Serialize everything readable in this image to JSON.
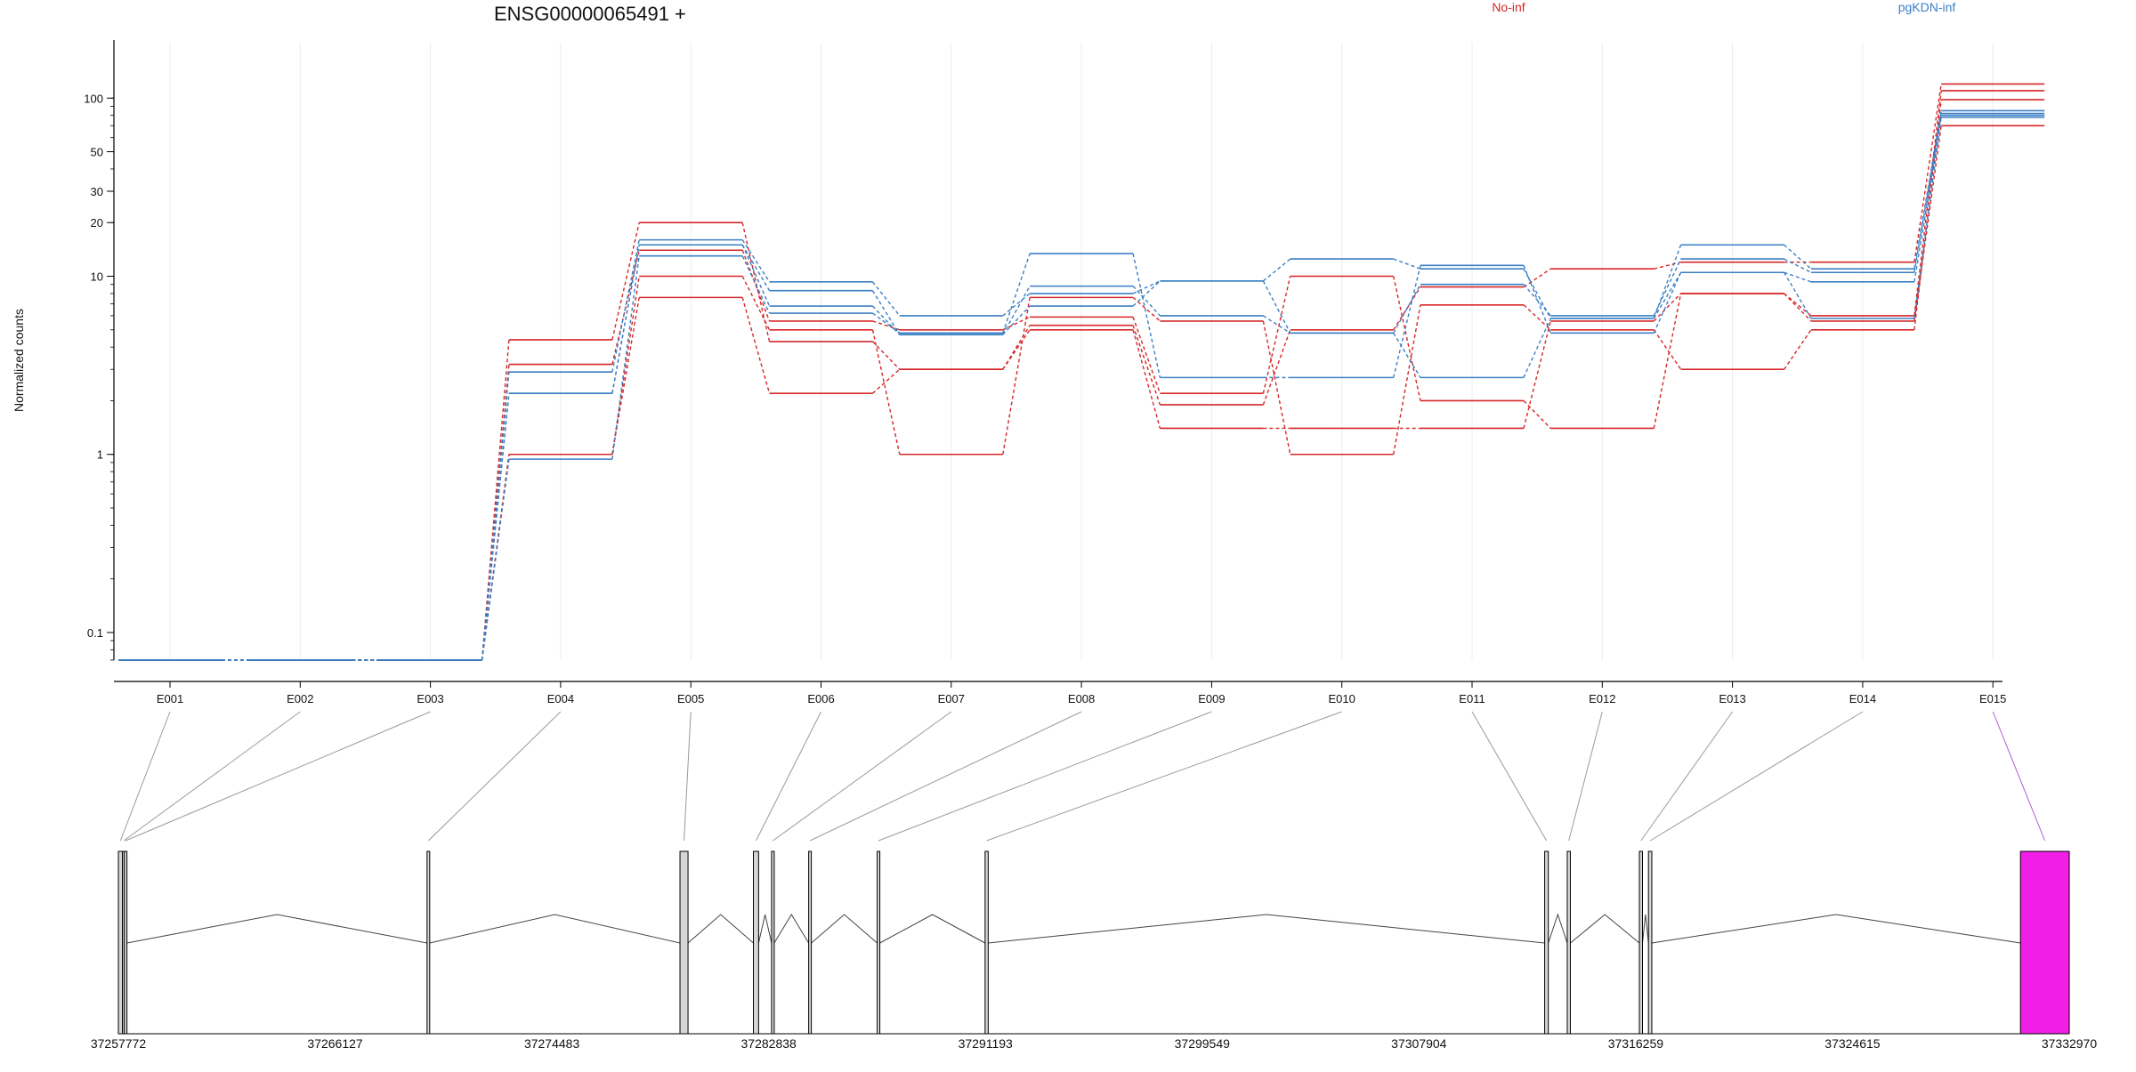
{
  "chart_data": {
    "type": "line",
    "title": "ENSG00000065491 +",
    "subtitle": "",
    "xlabel": "",
    "ylabel": "Normalized counts",
    "yscale": "log",
    "ylim": [
      0.07,
      150
    ],
    "y_ticks": [
      {
        "value": 0.1,
        "label": "0.1"
      },
      {
        "value": 1,
        "label": "1"
      },
      {
        "value": 10,
        "label": "10"
      },
      {
        "value": 20,
        "label": "20"
      },
      {
        "value": 30,
        "label": "30"
      },
      {
        "value": 50,
        "label": "50"
      },
      {
        "value": 100,
        "label": "100"
      }
    ],
    "categories": [
      "E001",
      "E002",
      "E003",
      "E004",
      "E005",
      "E006",
      "E007",
      "E008",
      "E009",
      "E010",
      "E011",
      "E012",
      "E013",
      "E014",
      "E015"
    ],
    "legend": [
      {
        "label": "No-inf",
        "color": "#d62728"
      },
      {
        "label": "pgKDN-inf",
        "color": "#3b7fc4"
      }
    ],
    "grid": "vertical-light",
    "series": [
      {
        "group": "No-inf",
        "color": "#d62728",
        "values": [
          0.07,
          0.07,
          0.07,
          4.4,
          20,
          4.3,
          3.0,
          5.3,
          1.9,
          5.0,
          8.7,
          11,
          12,
          12,
          120
        ]
      },
      {
        "group": "No-inf",
        "color": "#d62728",
        "values": [
          0.07,
          0.07,
          0.07,
          3.2,
          14,
          5.6,
          5.0,
          5.9,
          2.2,
          10,
          2.0,
          1.4,
          8.0,
          6.0,
          110
        ]
      },
      {
        "group": "No-inf",
        "color": "#d62728",
        "values": [
          0.07,
          0.07,
          0.07,
          1.0,
          10,
          5.0,
          1.0,
          7.6,
          5.6,
          1.0,
          6.9,
          5.0,
          3.0,
          5.0,
          98
        ]
      },
      {
        "group": "No-inf",
        "color": "#d62728",
        "values": [
          0.07,
          0.07,
          0.07,
          1.0,
          7.6,
          2.2,
          3.0,
          5.0,
          1.4,
          1.4,
          1.4,
          5.6,
          8.0,
          5.6,
          70
        ]
      },
      {
        "group": "pgKDN-inf",
        "color": "#3b7fc4",
        "values": [
          0.07,
          0.07,
          0.07,
          2.9,
          16,
          9.3,
          6.0,
          8.0,
          9.4,
          12.5,
          11,
          5.8,
          15,
          11,
          85
        ]
      },
      {
        "group": "pgKDN-inf",
        "color": "#3b7fc4",
        "values": [
          0.07,
          0.07,
          0.07,
          2.2,
          15,
          8.3,
          4.7,
          8.8,
          6.0,
          4.8,
          9.0,
          6.0,
          12.5,
          10.5,
          82
        ]
      },
      {
        "group": "pgKDN-inf",
        "color": "#3b7fc4",
        "values": [
          0.07,
          0.07,
          0.07,
          0.94,
          13,
          6.2,
          4.8,
          13.4,
          2.7,
          2.7,
          11.5,
          4.8,
          10.5,
          9.3,
          78
        ]
      },
      {
        "group": "pgKDN-inf",
        "color": "#3b7fc4",
        "values": [
          0.07,
          0.07,
          0.07,
          2.2,
          15,
          6.8,
          4.7,
          6.8,
          9.4,
          4.8,
          2.7,
          5.8,
          10.5,
          5.8,
          80
        ]
      }
    ],
    "gene_model": {
      "coord_ticks": [
        "37257772",
        "37266127",
        "37274483",
        "37282838",
        "37291193",
        "37299549",
        "37307904",
        "37316259",
        "37324615",
        "37332970"
      ],
      "coord_range": [
        37257772,
        37332970
      ],
      "exons": [
        {
          "id": "E001",
          "start": 37257772,
          "end": 37257930,
          "highlight": false
        },
        {
          "id": "E002",
          "start": 37257930,
          "end": 37258000,
          "highlight": false
        },
        {
          "id": "E003",
          "start": 37258000,
          "end": 37258070,
          "highlight": false
        },
        {
          "id": "E004",
          "start": 37269670,
          "end": 37269730,
          "highlight": false
        },
        {
          "id": "E005",
          "start": 37279420,
          "end": 37279730,
          "highlight": false
        },
        {
          "id": "E006",
          "start": 37282250,
          "end": 37282450,
          "highlight": false
        },
        {
          "id": "E007",
          "start": 37282950,
          "end": 37283030,
          "highlight": false
        },
        {
          "id": "E008",
          "start": 37284380,
          "end": 37284480,
          "highlight": false
        },
        {
          "id": "E009",
          "start": 37287020,
          "end": 37287090,
          "highlight": false
        },
        {
          "id": "E010",
          "start": 37291180,
          "end": 37291300,
          "highlight": false
        },
        {
          "id": "E011",
          "start": 37312750,
          "end": 37312890,
          "highlight": false
        },
        {
          "id": "E012",
          "start": 37313620,
          "end": 37313740,
          "highlight": false
        },
        {
          "id": "E013",
          "start": 37316400,
          "end": 37316520,
          "highlight": false
        },
        {
          "id": "E014",
          "start": 37316750,
          "end": 37316880,
          "highlight": false
        },
        {
          "id": "E015",
          "start": 37331090,
          "end": 37332970,
          "highlight": true,
          "color": "#f01ee6"
        }
      ]
    }
  }
}
